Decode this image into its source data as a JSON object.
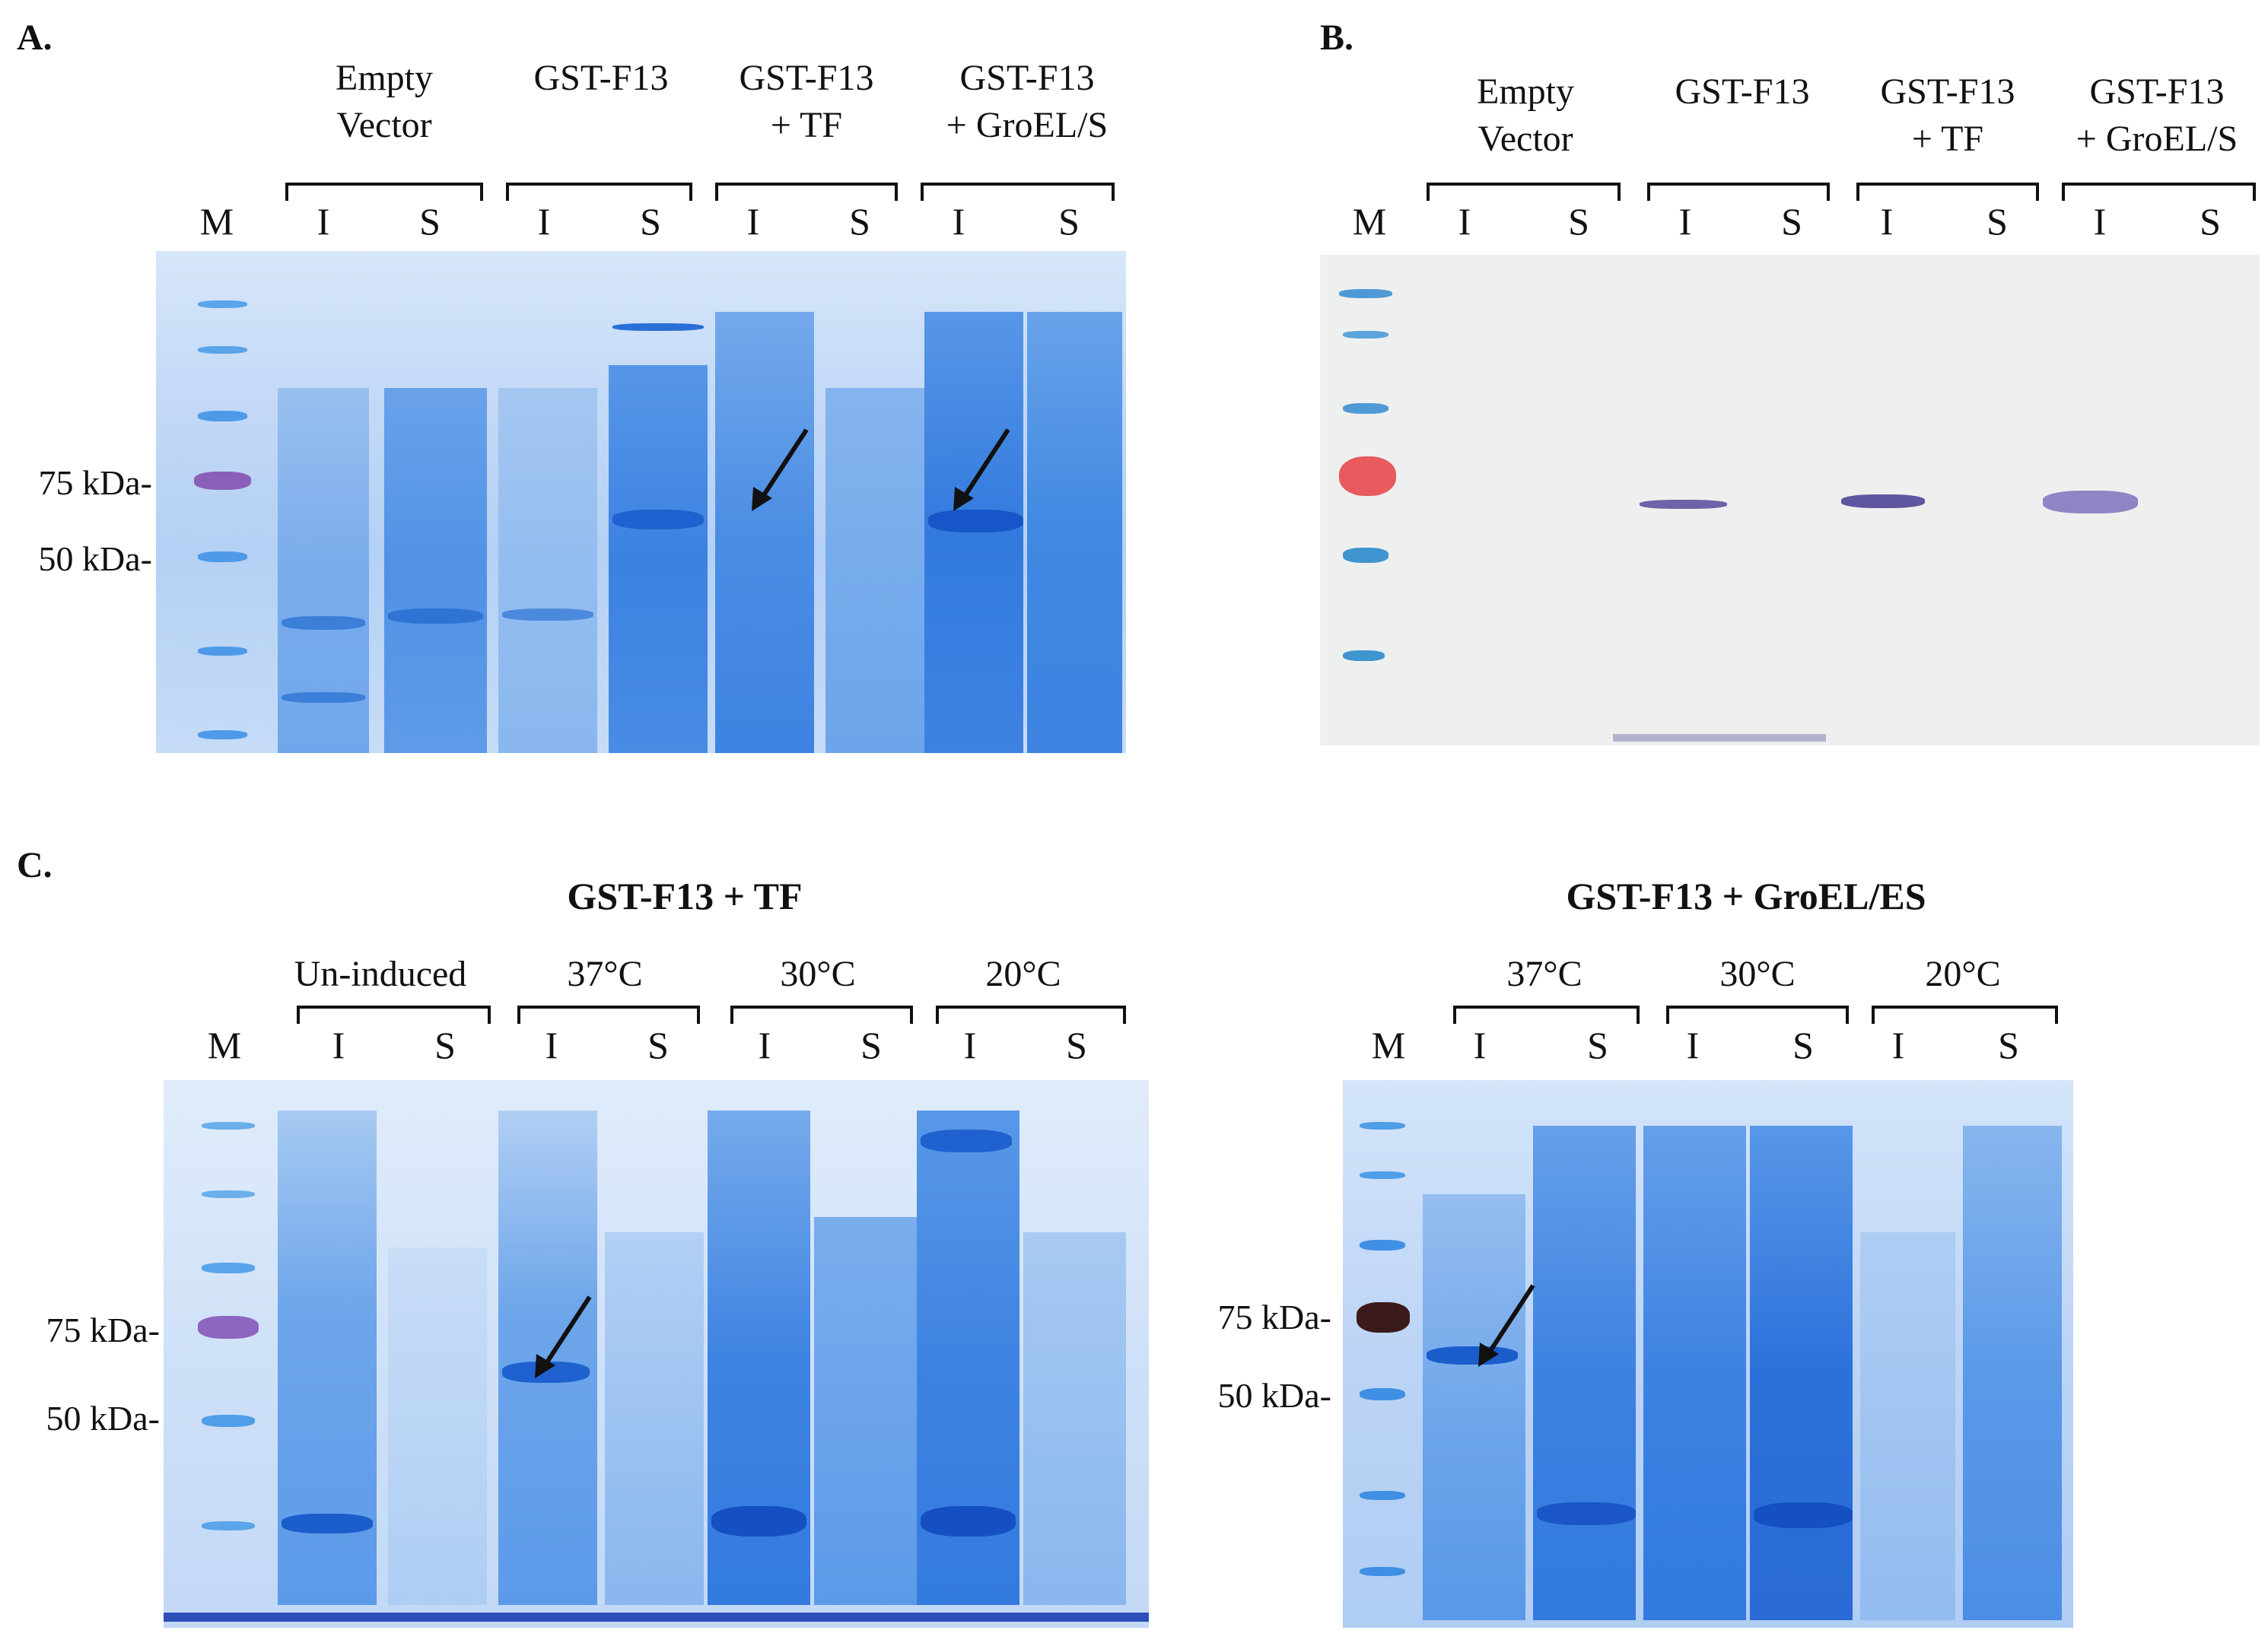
{
  "figure": {
    "panel_a": {
      "label": "A.",
      "groups": [
        {
          "line1": "Empty",
          "line2": "Vector"
        },
        {
          "line1": "GST-F13",
          "line2": ""
        },
        {
          "line1": "GST-F13",
          "line2": "+ TF"
        },
        {
          "line1": "GST-F13",
          "line2": "+ GroEL/S"
        }
      ],
      "marker": "M",
      "lane_labels": [
        "I",
        "S",
        "I",
        "S",
        "I",
        "S",
        "I",
        "S"
      ],
      "mw_markers": [
        "75 kDa-",
        "50 kDa-"
      ],
      "gel_color": "#2f7be0"
    },
    "panel_b": {
      "label": "B.",
      "groups": [
        {
          "line1": "Empty",
          "line2": "Vector"
        },
        {
          "line1": "GST-F13",
          "line2": ""
        },
        {
          "line1": "GST-F13",
          "line2": "+ TF"
        },
        {
          "line1": "GST-F13",
          "line2": "+ GroEL/S"
        }
      ],
      "marker": "M",
      "lane_labels": [
        "I",
        "S",
        "I",
        "S",
        "I",
        "S",
        "I",
        "S"
      ],
      "blot_color": "#6d63a8"
    },
    "panel_c": {
      "label": "C.",
      "left": {
        "title": "GST-F13 + TF",
        "groups": [
          "Un-induced",
          "37°C",
          "30°C",
          "20°C"
        ],
        "marker": "M",
        "lane_labels": [
          "I",
          "S",
          "I",
          "S",
          "I",
          "S",
          "I",
          "S"
        ],
        "mw_markers": [
          "75 kDa-",
          "50 kDa-"
        ]
      },
      "right": {
        "title": "GST-F13 + GroEL/ES",
        "groups": [
          "37°C",
          "30°C",
          "20°C"
        ],
        "marker": "M",
        "lane_labels": [
          "I",
          "S",
          "I",
          "S",
          "I",
          "S"
        ],
        "mw_markers": [
          "75 kDa-",
          "50 kDa-"
        ]
      }
    }
  }
}
